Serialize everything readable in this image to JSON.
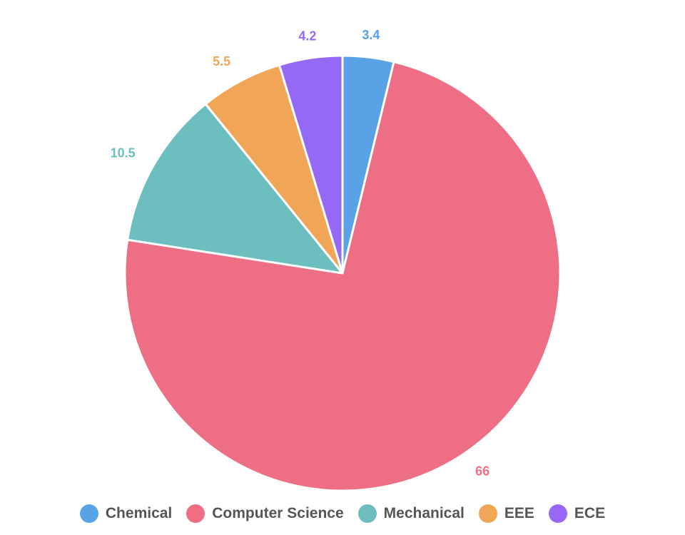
{
  "chart_data": {
    "type": "pie",
    "title": "",
    "start_angle_deg": 0,
    "direction": "clockwise",
    "slices": [
      {
        "label": "Chemical",
        "value": 3.4,
        "value_label": "3.4",
        "color": "#5aa2e6"
      },
      {
        "label": "Computer Science",
        "value": 66,
        "value_label": "66",
        "color": "#ed6e85"
      },
      {
        "label": "Mechanical",
        "value": 10.5,
        "value_label": "10.5",
        "color": "#6dbebe"
      },
      {
        "label": "EEE",
        "value": 5.5,
        "value_label": "5.5",
        "color": "#f0a656"
      },
      {
        "label": "ECE",
        "value": 4.2,
        "value_label": "4.2",
        "color": "#9569f5"
      }
    ],
    "legend_position": "bottom"
  }
}
